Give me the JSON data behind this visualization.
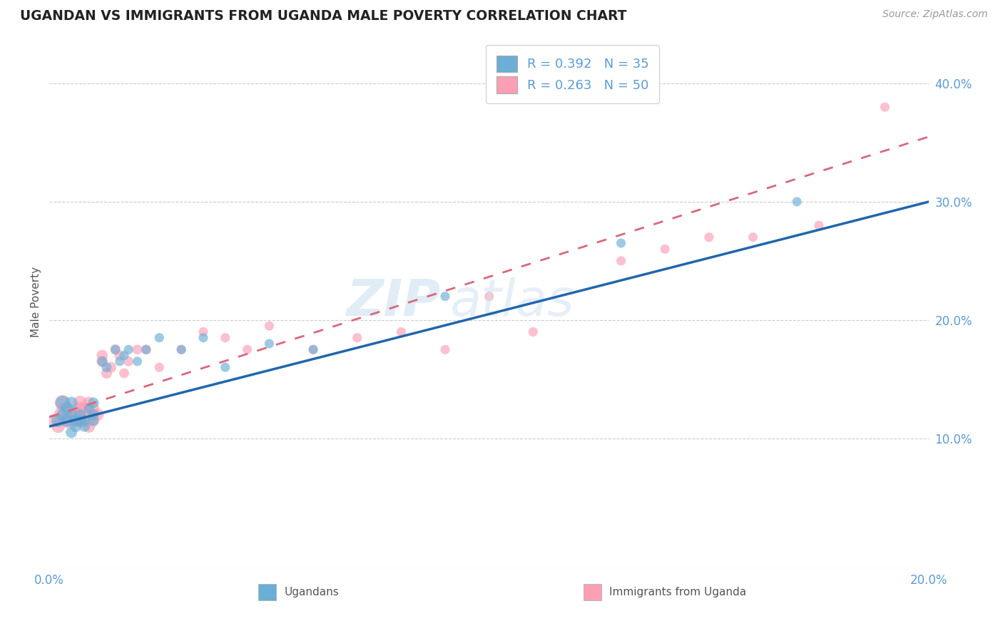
{
  "title": "UGANDAN VS IMMIGRANTS FROM UGANDA MALE POVERTY CORRELATION CHART",
  "source": "Source: ZipAtlas.com",
  "xlabel_label": "Ugandans",
  "xlabel_label2": "Immigrants from Uganda",
  "ylabel": "Male Poverty",
  "xlim": [
    0.0,
    0.2
  ],
  "ylim": [
    -0.01,
    0.44
  ],
  "color_blue": "#6baed6",
  "color_pink": "#fc9fb4",
  "color_line_blue": "#2166ac",
  "color_line_pink": "#d9687a",
  "watermark_zip": "ZIP",
  "watermark_atlas": "atlas",
  "title_color": "#222222",
  "axis_color": "#5b9bd5",
  "ugandans_x": [
    0.002,
    0.003,
    0.003,
    0.004,
    0.004,
    0.005,
    0.005,
    0.005,
    0.006,
    0.006,
    0.007,
    0.007,
    0.008,
    0.008,
    0.009,
    0.01,
    0.01,
    0.01,
    0.012,
    0.013,
    0.015,
    0.016,
    0.017,
    0.018,
    0.02,
    0.022,
    0.025,
    0.03,
    0.035,
    0.04,
    0.05,
    0.06,
    0.09,
    0.13,
    0.17
  ],
  "ugandans_y": [
    0.115,
    0.12,
    0.13,
    0.115,
    0.125,
    0.12,
    0.105,
    0.13,
    0.11,
    0.115,
    0.12,
    0.115,
    0.11,
    0.115,
    0.125,
    0.115,
    0.13,
    0.12,
    0.165,
    0.16,
    0.175,
    0.165,
    0.17,
    0.175,
    0.165,
    0.175,
    0.185,
    0.175,
    0.185,
    0.16,
    0.18,
    0.175,
    0.22,
    0.265,
    0.3
  ],
  "ugandans_sizes": [
    180,
    150,
    200,
    160,
    150,
    140,
    130,
    150,
    130,
    140,
    120,
    130,
    120,
    120,
    110,
    110,
    120,
    110,
    100,
    100,
    90,
    90,
    90,
    90,
    90,
    90,
    90,
    90,
    90,
    90,
    90,
    90,
    90,
    90,
    90
  ],
  "immigrants_x": [
    0.001,
    0.002,
    0.003,
    0.003,
    0.004,
    0.004,
    0.005,
    0.005,
    0.006,
    0.006,
    0.007,
    0.007,
    0.007,
    0.008,
    0.008,
    0.008,
    0.009,
    0.009,
    0.01,
    0.01,
    0.01,
    0.011,
    0.012,
    0.012,
    0.013,
    0.014,
    0.015,
    0.016,
    0.017,
    0.018,
    0.02,
    0.022,
    0.025,
    0.03,
    0.035,
    0.04,
    0.045,
    0.05,
    0.06,
    0.07,
    0.08,
    0.09,
    0.1,
    0.11,
    0.13,
    0.14,
    0.15,
    0.16,
    0.175,
    0.19
  ],
  "immigrants_y": [
    0.115,
    0.11,
    0.12,
    0.13,
    0.115,
    0.125,
    0.12,
    0.115,
    0.115,
    0.12,
    0.125,
    0.115,
    0.13,
    0.12,
    0.115,
    0.125,
    0.11,
    0.13,
    0.12,
    0.125,
    0.115,
    0.12,
    0.165,
    0.17,
    0.155,
    0.16,
    0.175,
    0.17,
    0.155,
    0.165,
    0.175,
    0.175,
    0.16,
    0.175,
    0.19,
    0.185,
    0.175,
    0.195,
    0.175,
    0.185,
    0.19,
    0.175,
    0.22,
    0.19,
    0.25,
    0.26,
    0.27,
    0.27,
    0.28,
    0.38
  ],
  "immigrants_sizes": [
    180,
    180,
    300,
    250,
    220,
    200,
    200,
    180,
    200,
    220,
    200,
    180,
    200,
    200,
    180,
    180,
    160,
    150,
    160,
    150,
    150,
    150,
    130,
    130,
    120,
    120,
    110,
    110,
    100,
    100,
    100,
    100,
    90,
    90,
    90,
    90,
    90,
    90,
    90,
    90,
    90,
    90,
    90,
    90,
    90,
    90,
    90,
    90,
    90,
    90
  ],
  "line_blue_x0": 0.0,
  "line_blue_x1": 0.2,
  "line_blue_y0": 0.11,
  "line_blue_y1": 0.3,
  "line_pink_x0": 0.0,
  "line_pink_x1": 0.2,
  "line_pink_y0": 0.118,
  "line_pink_y1": 0.355
}
